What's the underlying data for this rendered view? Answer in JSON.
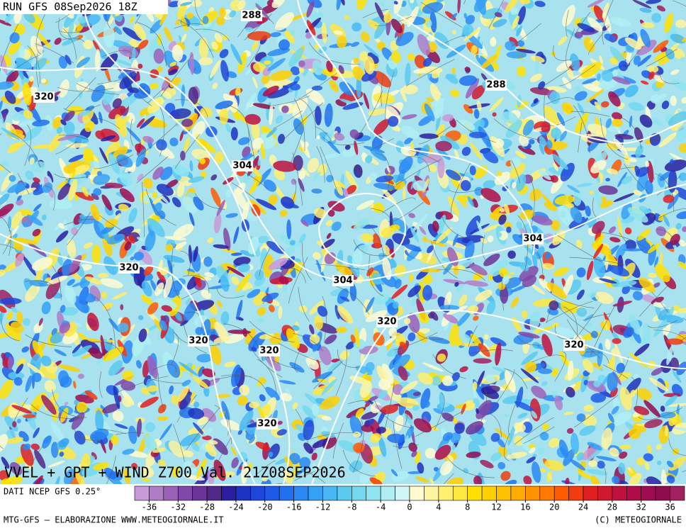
{
  "header": {
    "run": "RUN GFS 08Sep2026 18Z"
  },
  "map": {
    "title": "VVEL + GPT + WIND Z700 Val. 21Z08SEP2026",
    "contour_labels": [
      288,
      288,
      320,
      304,
      304,
      320,
      304,
      320,
      320,
      320,
      320,
      320
    ]
  },
  "footer": {
    "source": "DATI NCEP GFS 0.25°",
    "credit_left": "MTG-GFS — ELABORAZIONE WWW.METEOGIORNALE.IT",
    "credit_right": "(C) METEOGIORNALE"
  },
  "colorbar": {
    "ticks": [
      -36,
      -32,
      -28,
      -24,
      -20,
      -16,
      -12,
      -8,
      -4,
      0,
      4,
      8,
      12,
      16,
      20,
      24,
      28,
      32,
      36
    ],
    "colors": [
      "#c89ad8",
      "#b07cc8",
      "#9a60b8",
      "#8048a8",
      "#6a3498",
      "#502888",
      "#2a1ea0",
      "#1e32c0",
      "#1e46d8",
      "#1e5ae8",
      "#2070f0",
      "#2a88f4",
      "#36a0f4",
      "#48b8f4",
      "#5ccaf0",
      "#74d8f0",
      "#90e4f0",
      "#b0eef4",
      "#d0f6f8",
      "#fffad0",
      "#fff4a0",
      "#fff070",
      "#ffe840",
      "#ffe000",
      "#ffd000",
      "#ffc000",
      "#ffac00",
      "#ff9400",
      "#ff7800",
      "#ff5a00",
      "#f03c10",
      "#e02020",
      "#d01830",
      "#c01040",
      "#b00c48",
      "#a00c50",
      "#900c50",
      "#a02060"
    ]
  }
}
